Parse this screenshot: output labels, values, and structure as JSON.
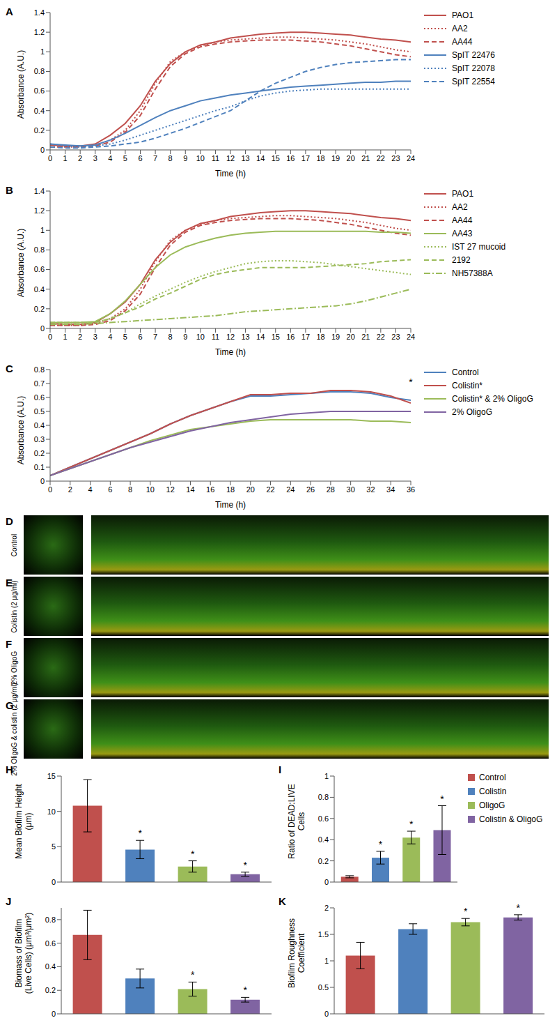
{
  "chart_data": [
    {
      "type": "line",
      "label": "A",
      "xlabel": "Time (h)",
      "ylabel": "Absorbance (A.U.)",
      "grid": false,
      "legend": "right",
      "x": [
        0,
        1,
        2,
        3,
        4,
        5,
        6,
        7,
        8,
        9,
        10,
        11,
        12,
        13,
        14,
        15,
        16,
        17,
        18,
        19,
        20,
        21,
        22,
        23,
        24
      ],
      "xlim": [
        0,
        24
      ],
      "xticks": [
        0,
        1,
        2,
        3,
        4,
        5,
        6,
        7,
        8,
        9,
        10,
        11,
        12,
        13,
        14,
        15,
        16,
        17,
        18,
        19,
        20,
        21,
        22,
        23,
        24
      ],
      "ylim": [
        0,
        1.4
      ],
      "yticks": [
        0,
        0.2,
        0.4,
        0.6,
        0.8,
        1,
        1.2,
        1.4
      ],
      "series": [
        {
          "name": "PAO1",
          "color": "#c0504d",
          "line_style": "solid",
          "values": [
            0.05,
            0.04,
            0.04,
            0.06,
            0.15,
            0.27,
            0.45,
            0.7,
            0.88,
            1.0,
            1.07,
            1.1,
            1.14,
            1.16,
            1.18,
            1.19,
            1.2,
            1.2,
            1.19,
            1.18,
            1.17,
            1.15,
            1.13,
            1.12,
            1.1
          ]
        },
        {
          "name": "AA2",
          "color": "#c0504d",
          "line_style": "dotted",
          "values": [
            0.03,
            0.03,
            0.03,
            0.05,
            0.1,
            0.2,
            0.4,
            0.68,
            0.9,
            1.0,
            1.06,
            1.1,
            1.12,
            1.13,
            1.14,
            1.15,
            1.15,
            1.14,
            1.13,
            1.12,
            1.1,
            1.08,
            1.05,
            1.02,
            1.0
          ]
        },
        {
          "name": "AA44",
          "color": "#c0504d",
          "line_style": "dashed",
          "values": [
            0.03,
            0.03,
            0.03,
            0.04,
            0.08,
            0.18,
            0.35,
            0.62,
            0.85,
            0.98,
            1.05,
            1.08,
            1.1,
            1.11,
            1.12,
            1.12,
            1.12,
            1.11,
            1.1,
            1.08,
            1.06,
            1.03,
            1.0,
            0.97,
            0.95
          ]
        },
        {
          "name": "SpIT 22476",
          "color": "#4f81bd",
          "line_style": "solid",
          "values": [
            0.06,
            0.05,
            0.04,
            0.05,
            0.1,
            0.17,
            0.25,
            0.33,
            0.4,
            0.45,
            0.5,
            0.53,
            0.56,
            0.58,
            0.6,
            0.62,
            0.64,
            0.65,
            0.66,
            0.67,
            0.68,
            0.69,
            0.69,
            0.7,
            0.7
          ]
        },
        {
          "name": "SpIT 22078",
          "color": "#4f81bd",
          "line_style": "dotted",
          "values": [
            0.06,
            0.04,
            0.03,
            0.04,
            0.06,
            0.1,
            0.15,
            0.2,
            0.25,
            0.3,
            0.35,
            0.4,
            0.44,
            0.5,
            0.55,
            0.58,
            0.6,
            0.61,
            0.62,
            0.62,
            0.62,
            0.62,
            0.62,
            0.62,
            0.62
          ]
        },
        {
          "name": "SpIT 22554",
          "color": "#4f81bd",
          "line_style": "dashed",
          "values": [
            0.03,
            0.02,
            0.02,
            0.03,
            0.04,
            0.06,
            0.08,
            0.12,
            0.17,
            0.22,
            0.28,
            0.34,
            0.4,
            0.5,
            0.6,
            0.68,
            0.74,
            0.8,
            0.84,
            0.87,
            0.89,
            0.9,
            0.91,
            0.92,
            0.92
          ]
        }
      ]
    },
    {
      "type": "line",
      "label": "B",
      "xlabel": "Time (h)",
      "ylabel": "Absorbance (A.U.)",
      "grid": false,
      "legend": "right",
      "x": [
        0,
        1,
        2,
        3,
        4,
        5,
        6,
        7,
        8,
        9,
        10,
        11,
        12,
        13,
        14,
        15,
        16,
        17,
        18,
        19,
        20,
        21,
        22,
        23,
        24
      ],
      "xlim": [
        0,
        24
      ],
      "xticks": [
        0,
        1,
        2,
        3,
        4,
        5,
        6,
        7,
        8,
        9,
        10,
        11,
        12,
        13,
        14,
        15,
        16,
        17,
        18,
        19,
        20,
        21,
        22,
        23,
        24
      ],
      "ylim": [
        0,
        1.4
      ],
      "yticks": [
        0,
        0.2,
        0.4,
        0.6,
        0.8,
        1,
        1.2,
        1.4
      ],
      "series": [
        {
          "name": "PAO1",
          "color": "#c0504d",
          "line_style": "solid",
          "values": [
            0.05,
            0.04,
            0.04,
            0.06,
            0.15,
            0.27,
            0.45,
            0.7,
            0.88,
            1.0,
            1.07,
            1.1,
            1.14,
            1.16,
            1.18,
            1.19,
            1.2,
            1.2,
            1.19,
            1.18,
            1.17,
            1.15,
            1.13,
            1.12,
            1.1
          ]
        },
        {
          "name": "AA2",
          "color": "#c0504d",
          "line_style": "dotted",
          "values": [
            0.03,
            0.03,
            0.03,
            0.05,
            0.1,
            0.2,
            0.4,
            0.68,
            0.9,
            1.0,
            1.06,
            1.1,
            1.12,
            1.13,
            1.14,
            1.15,
            1.15,
            1.14,
            1.13,
            1.12,
            1.1,
            1.08,
            1.05,
            1.02,
            1.0
          ]
        },
        {
          "name": "AA44",
          "color": "#c0504d",
          "line_style": "dashed",
          "values": [
            0.03,
            0.03,
            0.03,
            0.04,
            0.08,
            0.18,
            0.35,
            0.62,
            0.85,
            0.98,
            1.05,
            1.08,
            1.1,
            1.11,
            1.12,
            1.12,
            1.12,
            1.11,
            1.1,
            1.08,
            1.06,
            1.03,
            1.0,
            0.97,
            0.95
          ]
        },
        {
          "name": "AA43",
          "color": "#9bbb59",
          "line_style": "solid",
          "values": [
            0.06,
            0.06,
            0.06,
            0.07,
            0.15,
            0.28,
            0.45,
            0.62,
            0.75,
            0.83,
            0.88,
            0.92,
            0.95,
            0.97,
            0.98,
            0.99,
            0.99,
            0.99,
            0.99,
            0.99,
            0.99,
            0.99,
            0.98,
            0.98,
            0.97
          ]
        },
        {
          "name": "IST 27 mucoid",
          "color": "#9bbb59",
          "line_style": "dotted",
          "values": [
            0.06,
            0.06,
            0.06,
            0.06,
            0.1,
            0.16,
            0.25,
            0.33,
            0.4,
            0.47,
            0.53,
            0.58,
            0.62,
            0.66,
            0.68,
            0.69,
            0.69,
            0.68,
            0.67,
            0.65,
            0.63,
            0.61,
            0.59,
            0.57,
            0.55
          ]
        },
        {
          "name": "2192",
          "color": "#9bbb59",
          "line_style": "dashed",
          "values": [
            0.06,
            0.06,
            0.06,
            0.06,
            0.1,
            0.16,
            0.22,
            0.3,
            0.36,
            0.43,
            0.5,
            0.55,
            0.58,
            0.6,
            0.62,
            0.62,
            0.62,
            0.62,
            0.63,
            0.64,
            0.65,
            0.66,
            0.68,
            0.69,
            0.7
          ]
        },
        {
          "name": "NH57388A",
          "color": "#9bbb59",
          "line_style": "dashdot",
          "values": [
            0.04,
            0.04,
            0.04,
            0.05,
            0.06,
            0.07,
            0.08,
            0.09,
            0.1,
            0.11,
            0.12,
            0.13,
            0.15,
            0.17,
            0.18,
            0.19,
            0.2,
            0.21,
            0.22,
            0.23,
            0.25,
            0.28,
            0.32,
            0.36,
            0.4
          ]
        }
      ]
    },
    {
      "type": "line",
      "label": "C",
      "xlabel": "Time (h)",
      "ylabel": "Absorbance (A.U.)",
      "grid": false,
      "legend": "right",
      "x": [
        0,
        2,
        4,
        6,
        8,
        10,
        12,
        14,
        16,
        18,
        20,
        22,
        24,
        26,
        28,
        30,
        32,
        34,
        36
      ],
      "xlim": [
        0,
        36
      ],
      "xticks": [
        0,
        2,
        4,
        6,
        8,
        10,
        12,
        14,
        16,
        18,
        20,
        22,
        24,
        26,
        28,
        30,
        32,
        34,
        36
      ],
      "ylim": [
        0,
        0.8
      ],
      "yticks": [
        0,
        0.1,
        0.2,
        0.3,
        0.4,
        0.5,
        0.6,
        0.7,
        0.8
      ],
      "annotations": [
        {
          "x": 36,
          "y": 0.66,
          "text": "*"
        }
      ],
      "series": [
        {
          "name": "Control",
          "color": "#4f81bd",
          "line_style": "solid",
          "values": [
            0.04,
            0.1,
            0.16,
            0.22,
            0.28,
            0.34,
            0.41,
            0.47,
            0.52,
            0.57,
            0.61,
            0.61,
            0.62,
            0.63,
            0.64,
            0.64,
            0.63,
            0.6,
            0.58
          ]
        },
        {
          "name": "Colistin*",
          "color": "#c0504d",
          "line_style": "solid",
          "values": [
            0.04,
            0.1,
            0.16,
            0.22,
            0.28,
            0.34,
            0.41,
            0.47,
            0.52,
            0.57,
            0.62,
            0.62,
            0.63,
            0.63,
            0.65,
            0.65,
            0.64,
            0.61,
            0.56
          ]
        },
        {
          "name": "Colistin* & 2% OligoG",
          "color": "#9bbb59",
          "line_style": "solid",
          "values": [
            0.04,
            0.09,
            0.14,
            0.19,
            0.24,
            0.29,
            0.33,
            0.37,
            0.39,
            0.41,
            0.43,
            0.44,
            0.44,
            0.44,
            0.44,
            0.44,
            0.43,
            0.43,
            0.42
          ]
        },
        {
          "name": "2% OligoG",
          "color": "#8064a2",
          "line_style": "solid",
          "values": [
            0.04,
            0.09,
            0.14,
            0.19,
            0.24,
            0.28,
            0.32,
            0.36,
            0.39,
            0.42,
            0.44,
            0.46,
            0.48,
            0.49,
            0.5,
            0.5,
            0.5,
            0.5,
            0.5
          ]
        }
      ]
    },
    {
      "type": "image",
      "label": "D",
      "title": "Control"
    },
    {
      "type": "image",
      "label": "E",
      "title": "Colistin (2 μg/ml)"
    },
    {
      "type": "image",
      "label": "F",
      "title": "2% OligoG"
    },
    {
      "type": "image",
      "label": "G",
      "title": "2% OligoG & colistin (2 μg/ml)"
    },
    {
      "type": "bar",
      "label": "H",
      "ylabel": "Mean Biofilm Height\n(μm)",
      "grid": false,
      "tick_labels": "y",
      "categories": [
        null,
        null,
        null,
        null
      ],
      "colors": [
        "#c0504d",
        "#4f81bd",
        "#9bbb59",
        "#8064a2"
      ],
      "values": [
        10.8,
        4.6,
        2.2,
        1.1
      ],
      "errors": [
        3.7,
        1.3,
        0.8,
        0.3
      ],
      "annotations": [
        null,
        "*",
        "*",
        "*"
      ],
      "ylim": [
        0,
        15
      ],
      "yticks": [
        0,
        5,
        10,
        15
      ]
    },
    {
      "type": "bar",
      "label": "I",
      "ylabel": "Ratio of DEAD:LIVE\nCells",
      "grid": false,
      "tick_labels": "y",
      "legend": "right",
      "categories": [
        "Control",
        "Colistin",
        "OligoG",
        "Colistin & OligoG"
      ],
      "colors": [
        "#c0504d",
        "#4f81bd",
        "#9bbb59",
        "#8064a2"
      ],
      "values": [
        0.05,
        0.23,
        0.42,
        0.49
      ],
      "errors": [
        0.01,
        0.06,
        0.06,
        0.23
      ],
      "annotations": [
        null,
        "*",
        "*",
        "*"
      ],
      "ylim": [
        0,
        1
      ],
      "yticks": [
        0,
        0.2,
        0.4,
        0.6,
        0.8,
        1
      ]
    },
    {
      "type": "bar",
      "label": "J",
      "ylabel": "Biomass of Biofilm\n(Live Cells) (μm³/μm²)",
      "grid": false,
      "tick_labels": "y",
      "categories": [
        null,
        null,
        null,
        null
      ],
      "colors": [
        "#c0504d",
        "#4f81bd",
        "#9bbb59",
        "#8064a2"
      ],
      "values": [
        0.67,
        0.3,
        0.21,
        0.12
      ],
      "errors": [
        0.21,
        0.08,
        0.06,
        0.02
      ],
      "annotations": [
        null,
        null,
        "*",
        "*"
      ],
      "ylim": [
        0,
        0.9
      ],
      "yticks": [
        0,
        0.2,
        0.4,
        0.6,
        0.8
      ]
    },
    {
      "type": "bar",
      "label": "K",
      "ylabel": "Biofilm Roughness\nCoefficient",
      "grid": false,
      "tick_labels": "y",
      "categories": [
        null,
        null,
        null,
        null
      ],
      "colors": [
        "#c0504d",
        "#4f81bd",
        "#9bbb59",
        "#8064a2"
      ],
      "values": [
        1.1,
        1.6,
        1.73,
        1.82
      ],
      "errors": [
        0.25,
        0.1,
        0.07,
        0.05
      ],
      "annotations": [
        null,
        null,
        "*",
        "*"
      ],
      "ylim": [
        0,
        2
      ],
      "yticks": [
        0,
        0.5,
        1,
        1.5,
        2
      ]
    }
  ]
}
